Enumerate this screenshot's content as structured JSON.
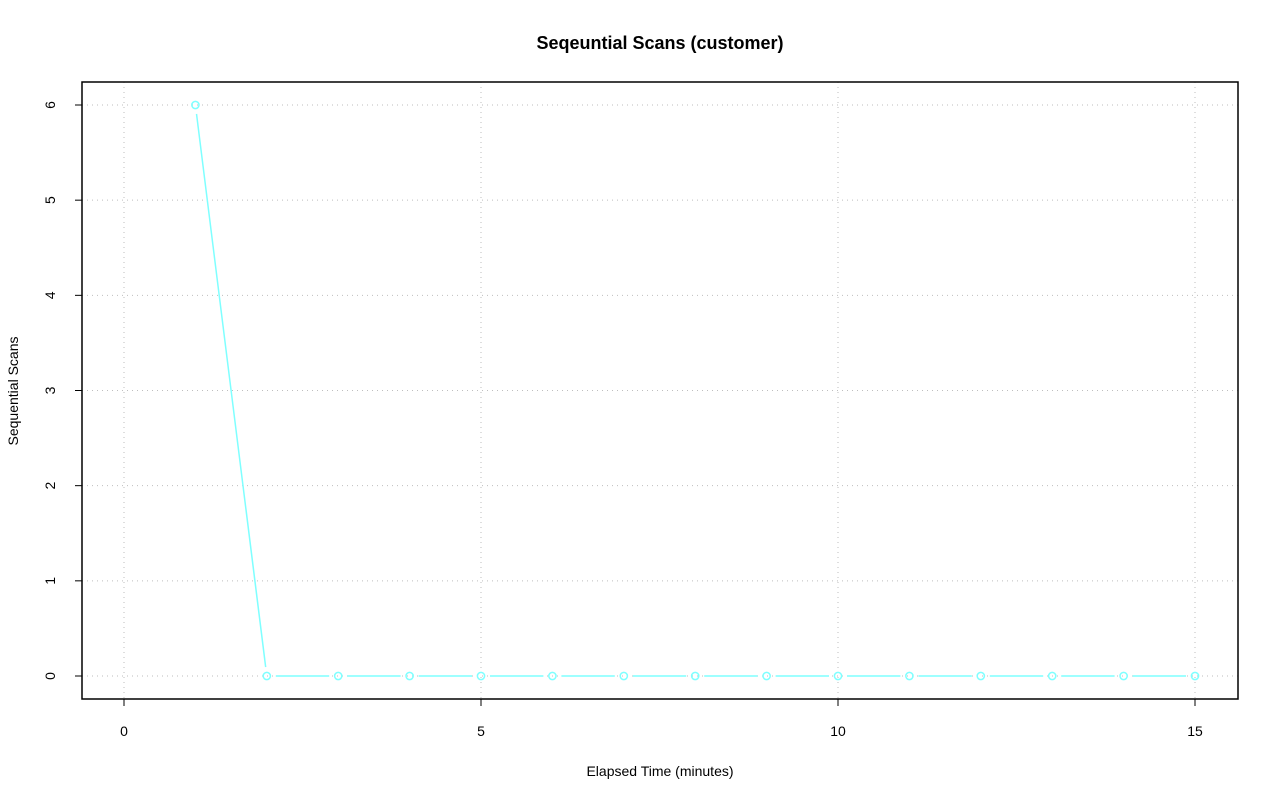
{
  "chart_data": {
    "type": "line",
    "title": "Seqeuntial Scans (customer)",
    "xlabel": "Elapsed Time (minutes)",
    "ylabel": "Sequential Scans",
    "xlim": [
      0,
      15
    ],
    "ylim": [
      0,
      6
    ],
    "x_ticks": [
      0,
      5,
      10,
      15
    ],
    "y_ticks": [
      0,
      1,
      2,
      3,
      4,
      5,
      6
    ],
    "x_gridlines": [
      0,
      5,
      10,
      15
    ],
    "y_gridlines": [
      0,
      1,
      2,
      3,
      4,
      5,
      6
    ],
    "grid": true,
    "series": [
      {
        "color": "#7fffff",
        "x": [
          1,
          2,
          3,
          4,
          5,
          6,
          7,
          8,
          9,
          10,
          11,
          12,
          13,
          14,
          15
        ],
        "values": [
          6,
          0,
          0,
          0,
          0,
          0,
          0,
          0,
          0,
          0,
          0,
          0,
          0,
          0,
          0
        ]
      }
    ]
  }
}
